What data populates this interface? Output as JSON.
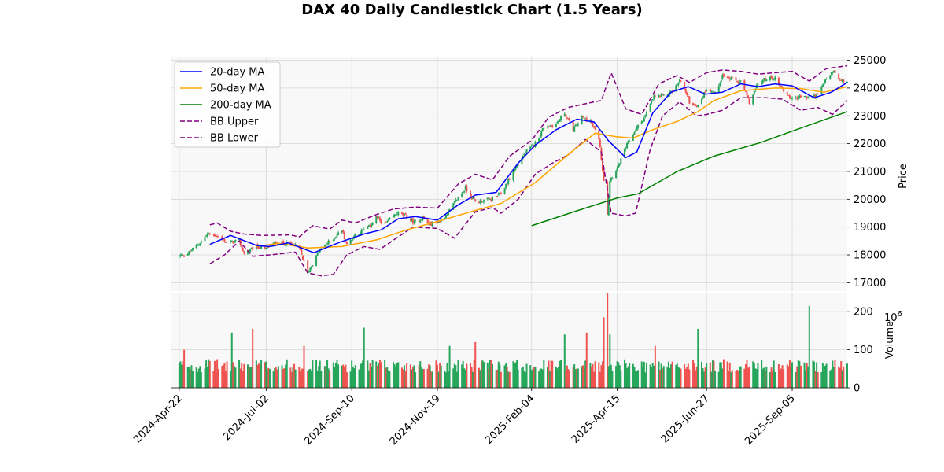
{
  "chart_data": {
    "type": "candlestick",
    "title": "DAX 40 Daily Candlestick Chart (1.5 Years)",
    "ylabel_price": "Price",
    "ylabel_volume": "Volume",
    "volume_exponent": "10",
    "volume_exponent_power": "6",
    "x_range": [
      "2024-04-15",
      "2025-10-20"
    ],
    "x_ticks": [
      "2024-Apr-22",
      "2024-Jul-02",
      "2024-Sep-10",
      "2024-Nov-19",
      "2025-Feb-04",
      "2025-Apr-15",
      "2025-Jun-27",
      "2025-Sep-05"
    ],
    "x_tick_dates": [
      "2024-04-22",
      "2024-07-02",
      "2024-09-10",
      "2024-11-19",
      "2025-02-04",
      "2025-04-15",
      "2025-06-27",
      "2025-09-05"
    ],
    "price_ylim": [
      16700,
      25100
    ],
    "price_yticks": [
      17000,
      18000,
      19000,
      20000,
      21000,
      22000,
      23000,
      24000,
      25000
    ],
    "volume_ylim": [
      0,
      250
    ],
    "volume_yticks": [
      0,
      100,
      200
    ],
    "grid": true,
    "legend_position": "upper-left",
    "colors": {
      "up": "#26a65b",
      "down": "#ef5350",
      "ma20": "#0000ff",
      "ma50": "#ffa500",
      "ma200": "#008000",
      "bb": "#800080",
      "panel_bg": "#f8f8f8",
      "grid": "#d6d6d6"
    },
    "legend": [
      {
        "key": "ma20",
        "label": "20-day MA",
        "style": "solid"
      },
      {
        "key": "ma50",
        "label": "50-day MA",
        "style": "solid"
      },
      {
        "key": "ma200",
        "label": "200-day MA",
        "style": "solid"
      },
      {
        "key": "bb_upper",
        "label": "BB Upper",
        "style": "dashed"
      },
      {
        "key": "bb_lower",
        "label": "BB Lower",
        "style": "dashed"
      }
    ],
    "close_path": [
      [
        "2024-04-22",
        17950
      ],
      [
        "2024-04-29",
        18050
      ],
      [
        "2024-05-08",
        18400
      ],
      [
        "2024-05-15",
        18750
      ],
      [
        "2024-05-22",
        18700
      ],
      [
        "2024-05-31",
        18450
      ],
      [
        "2024-06-10",
        18500
      ],
      [
        "2024-06-14",
        18050
      ],
      [
        "2024-06-24",
        18300
      ],
      [
        "2024-07-01",
        18200
      ],
      [
        "2024-07-10",
        18450
      ],
      [
        "2024-07-22",
        18400
      ],
      [
        "2024-07-29",
        18250
      ],
      [
        "2024-08-05",
        17350
      ],
      [
        "2024-08-15",
        18200
      ],
      [
        "2024-08-26",
        18600
      ],
      [
        "2024-09-02",
        18900
      ],
      [
        "2024-09-06",
        18350
      ],
      [
        "2024-09-12",
        18700
      ],
      [
        "2024-09-24",
        19000
      ],
      [
        "2024-09-30",
        19350
      ],
      [
        "2024-10-07",
        19100
      ],
      [
        "2024-10-17",
        19500
      ],
      [
        "2024-10-24",
        19400
      ],
      [
        "2024-10-31",
        19150
      ],
      [
        "2024-11-07",
        19350
      ],
      [
        "2024-11-12",
        19100
      ],
      [
        "2024-11-21",
        19200
      ],
      [
        "2024-11-29",
        19600
      ],
      [
        "2024-12-05",
        20000
      ],
      [
        "2024-12-12",
        20400
      ],
      [
        "2024-12-20",
        19900
      ],
      [
        "2025-01-02",
        20000
      ],
      [
        "2025-01-10",
        20200
      ],
      [
        "2025-01-20",
        21000
      ],
      [
        "2025-01-30",
        21700
      ],
      [
        "2025-02-07",
        22000
      ],
      [
        "2025-02-14",
        22600
      ],
      [
        "2025-02-24",
        22700
      ],
      [
        "2025-03-03",
        23100
      ],
      [
        "2025-03-10",
        22500
      ],
      [
        "2025-03-17",
        22950
      ],
      [
        "2025-03-24",
        22800
      ],
      [
        "2025-03-31",
        22200
      ],
      [
        "2025-04-04",
        20700
      ],
      [
        "2025-04-07",
        19500
      ],
      [
        "2025-04-09",
        20700
      ],
      [
        "2025-04-16",
        21200
      ],
      [
        "2025-04-23",
        21950
      ],
      [
        "2025-04-30",
        22500
      ],
      [
        "2025-05-08",
        23000
      ],
      [
        "2025-05-15",
        23700
      ],
      [
        "2025-05-23",
        23700
      ],
      [
        "2025-05-30",
        23900
      ],
      [
        "2025-06-06",
        24300
      ],
      [
        "2025-06-13",
        23500
      ],
      [
        "2025-06-20",
        23350
      ],
      [
        "2025-06-27",
        24000
      ],
      [
        "2025-07-04",
        23800
      ],
      [
        "2025-07-10",
        24450
      ],
      [
        "2025-07-18",
        24300
      ],
      [
        "2025-07-25",
        24200
      ],
      [
        "2025-08-01",
        23500
      ],
      [
        "2025-08-08",
        24150
      ],
      [
        "2025-08-15",
        24350
      ],
      [
        "2025-08-22",
        24350
      ],
      [
        "2025-08-29",
        23900
      ],
      [
        "2025-09-05",
        23600
      ],
      [
        "2025-09-12",
        23700
      ],
      [
        "2025-09-19",
        23650
      ],
      [
        "2025-09-26",
        23750
      ],
      [
        "2025-10-03",
        24350
      ],
      [
        "2025-10-09",
        24600
      ],
      [
        "2025-10-14",
        24250
      ],
      [
        "2025-10-20",
        24250
      ]
    ],
    "volume_baseline_millions": 58,
    "volume_spikes_millions": [
      [
        "2024-04-26",
        100
      ],
      [
        "2024-06-04",
        145
      ],
      [
        "2024-06-21",
        155
      ],
      [
        "2024-08-02",
        110
      ],
      [
        "2024-09-20",
        158
      ],
      [
        "2024-11-29",
        110
      ],
      [
        "2024-12-20",
        120
      ],
      [
        "2025-03-03",
        140
      ],
      [
        "2025-03-21",
        145
      ],
      [
        "2025-04-04",
        185
      ],
      [
        "2025-04-07",
        248
      ],
      [
        "2025-04-09",
        140
      ],
      [
        "2025-05-16",
        110
      ],
      [
        "2025-06-20",
        155
      ],
      [
        "2025-09-19",
        215
      ]
    ],
    "ma20": [
      [
        "2024-05-17",
        18380
      ],
      [
        "2024-06-03",
        18700
      ],
      [
        "2024-06-25",
        18330
      ],
      [
        "2024-07-05",
        18300
      ],
      [
        "2024-07-20",
        18430
      ],
      [
        "2024-08-10",
        18080
      ],
      [
        "2024-08-31",
        18450
      ],
      [
        "2024-09-20",
        18750
      ],
      [
        "2024-10-04",
        18900
      ],
      [
        "2024-10-18",
        19300
      ],
      [
        "2024-11-01",
        19380
      ],
      [
        "2024-11-19",
        19250
      ],
      [
        "2024-12-06",
        19800
      ],
      [
        "2024-12-20",
        20150
      ],
      [
        "2025-01-06",
        20250
      ],
      [
        "2025-01-24",
        21300
      ],
      [
        "2025-02-07",
        21950
      ],
      [
        "2025-02-24",
        22500
      ],
      [
        "2025-03-13",
        22880
      ],
      [
        "2025-03-27",
        22780
      ],
      [
        "2025-04-08",
        22100
      ],
      [
        "2025-04-22",
        21500
      ],
      [
        "2025-05-01",
        21700
      ],
      [
        "2025-05-14",
        23100
      ],
      [
        "2025-05-29",
        23850
      ],
      [
        "2025-06-12",
        24050
      ],
      [
        "2025-06-26",
        23780
      ],
      [
        "2025-07-10",
        23850
      ],
      [
        "2025-07-25",
        24150
      ],
      [
        "2025-08-08",
        24050
      ],
      [
        "2025-08-22",
        24150
      ],
      [
        "2025-09-05",
        24080
      ],
      [
        "2025-09-23",
        23650
      ],
      [
        "2025-10-07",
        23850
      ],
      [
        "2025-10-20",
        24200
      ]
    ],
    "ma50": [
      [
        "2024-06-24",
        18300
      ],
      [
        "2024-07-12",
        18420
      ],
      [
        "2024-08-05",
        18250
      ],
      [
        "2024-09-02",
        18300
      ],
      [
        "2024-10-01",
        18550
      ],
      [
        "2024-10-25",
        18900
      ],
      [
        "2024-11-19",
        19200
      ],
      [
        "2024-12-20",
        19600
      ],
      [
        "2025-01-10",
        19850
      ],
      [
        "2025-02-07",
        20600
      ],
      [
        "2025-03-07",
        21650
      ],
      [
        "2025-03-28",
        22380
      ],
      [
        "2025-04-14",
        22250
      ],
      [
        "2025-04-28",
        22200
      ],
      [
        "2025-05-14",
        22500
      ],
      [
        "2025-06-03",
        22800
      ],
      [
        "2025-06-20",
        23150
      ],
      [
        "2025-07-03",
        23550
      ],
      [
        "2025-07-25",
        23900
      ],
      [
        "2025-08-22",
        24000
      ],
      [
        "2025-09-12",
        23980
      ],
      [
        "2025-10-01",
        23850
      ],
      [
        "2025-10-20",
        24050
      ]
    ],
    "ma200": [
      [
        "2025-02-04",
        19050
      ],
      [
        "2025-03-14",
        19600
      ],
      [
        "2025-04-15",
        20050
      ],
      [
        "2025-05-02",
        20200
      ],
      [
        "2025-06-03",
        21000
      ],
      [
        "2025-07-03",
        21550
      ],
      [
        "2025-08-11",
        22050
      ],
      [
        "2025-09-05",
        22450
      ],
      [
        "2025-10-20",
        23150
      ]
    ],
    "bb_upper": [
      [
        "2024-05-17",
        19080
      ],
      [
        "2024-05-23",
        19150
      ],
      [
        "2024-06-03",
        18850
      ],
      [
        "2024-06-14",
        18750
      ],
      [
        "2024-06-28",
        18700
      ],
      [
        "2024-07-22",
        18720
      ],
      [
        "2024-07-29",
        18650
      ],
      [
        "2024-08-09",
        19050
      ],
      [
        "2024-08-23",
        18930
      ],
      [
        "2024-09-02",
        19250
      ],
      [
        "2024-09-13",
        19150
      ],
      [
        "2024-09-30",
        19450
      ],
      [
        "2024-10-14",
        19650
      ],
      [
        "2024-11-01",
        19720
      ],
      [
        "2024-11-19",
        19680
      ],
      [
        "2024-12-06",
        20550
      ],
      [
        "2024-12-20",
        20900
      ],
      [
        "2025-01-03",
        20700
      ],
      [
        "2025-01-17",
        21550
      ],
      [
        "2025-02-04",
        22120
      ],
      [
        "2025-02-18",
        22950
      ],
      [
        "2025-03-06",
        23300
      ],
      [
        "2025-03-27",
        23500
      ],
      [
        "2025-04-02",
        23550
      ],
      [
        "2025-04-10",
        24550
      ],
      [
        "2025-04-22",
        23250
      ],
      [
        "2025-05-05",
        23050
      ],
      [
        "2025-05-19",
        24150
      ],
      [
        "2025-06-03",
        24450
      ],
      [
        "2025-06-13",
        24200
      ],
      [
        "2025-06-27",
        24550
      ],
      [
        "2025-07-10",
        24650
      ],
      [
        "2025-07-25",
        24600
      ],
      [
        "2025-08-08",
        24500
      ],
      [
        "2025-08-22",
        24550
      ],
      [
        "2025-09-05",
        24600
      ],
      [
        "2025-09-19",
        24250
      ],
      [
        "2025-10-03",
        24700
      ],
      [
        "2025-10-20",
        24800
      ]
    ],
    "bb_lower": [
      [
        "2024-05-17",
        17680
      ],
      [
        "2024-05-29",
        18000
      ],
      [
        "2024-06-10",
        18500
      ],
      [
        "2024-06-21",
        17950
      ],
      [
        "2024-07-05",
        18000
      ],
      [
        "2024-07-26",
        18100
      ],
      [
        "2024-08-05",
        17350
      ],
      [
        "2024-08-16",
        17250
      ],
      [
        "2024-08-26",
        17300
      ],
      [
        "2024-09-06",
        18000
      ],
      [
        "2024-09-20",
        18300
      ],
      [
        "2024-10-03",
        18200
      ],
      [
        "2024-10-18",
        18650
      ],
      [
        "2024-10-30",
        19000
      ],
      [
        "2024-11-19",
        18950
      ],
      [
        "2024-12-03",
        18600
      ],
      [
        "2024-12-20",
        19550
      ],
      [
        "2025-01-03",
        19700
      ],
      [
        "2025-01-10",
        19500
      ],
      [
        "2025-01-24",
        20000
      ],
      [
        "2025-02-07",
        20900
      ],
      [
        "2025-02-21",
        21300
      ],
      [
        "2025-03-06",
        21600
      ],
      [
        "2025-03-20",
        22150
      ],
      [
        "2025-04-02",
        21700
      ],
      [
        "2025-04-10",
        19500
      ],
      [
        "2025-04-22",
        19400
      ],
      [
        "2025-04-30",
        19500
      ],
      [
        "2025-05-12",
        21800
      ],
      [
        "2025-05-22",
        23000
      ],
      [
        "2025-06-05",
        23500
      ],
      [
        "2025-06-19",
        23000
      ],
      [
        "2025-06-27",
        23050
      ],
      [
        "2025-07-10",
        23200
      ],
      [
        "2025-07-25",
        23650
      ],
      [
        "2025-08-15",
        23650
      ],
      [
        "2025-08-28",
        23600
      ],
      [
        "2025-09-12",
        23200
      ],
      [
        "2025-09-26",
        23300
      ],
      [
        "2025-10-08",
        23050
      ],
      [
        "2025-10-20",
        23550
      ]
    ]
  }
}
